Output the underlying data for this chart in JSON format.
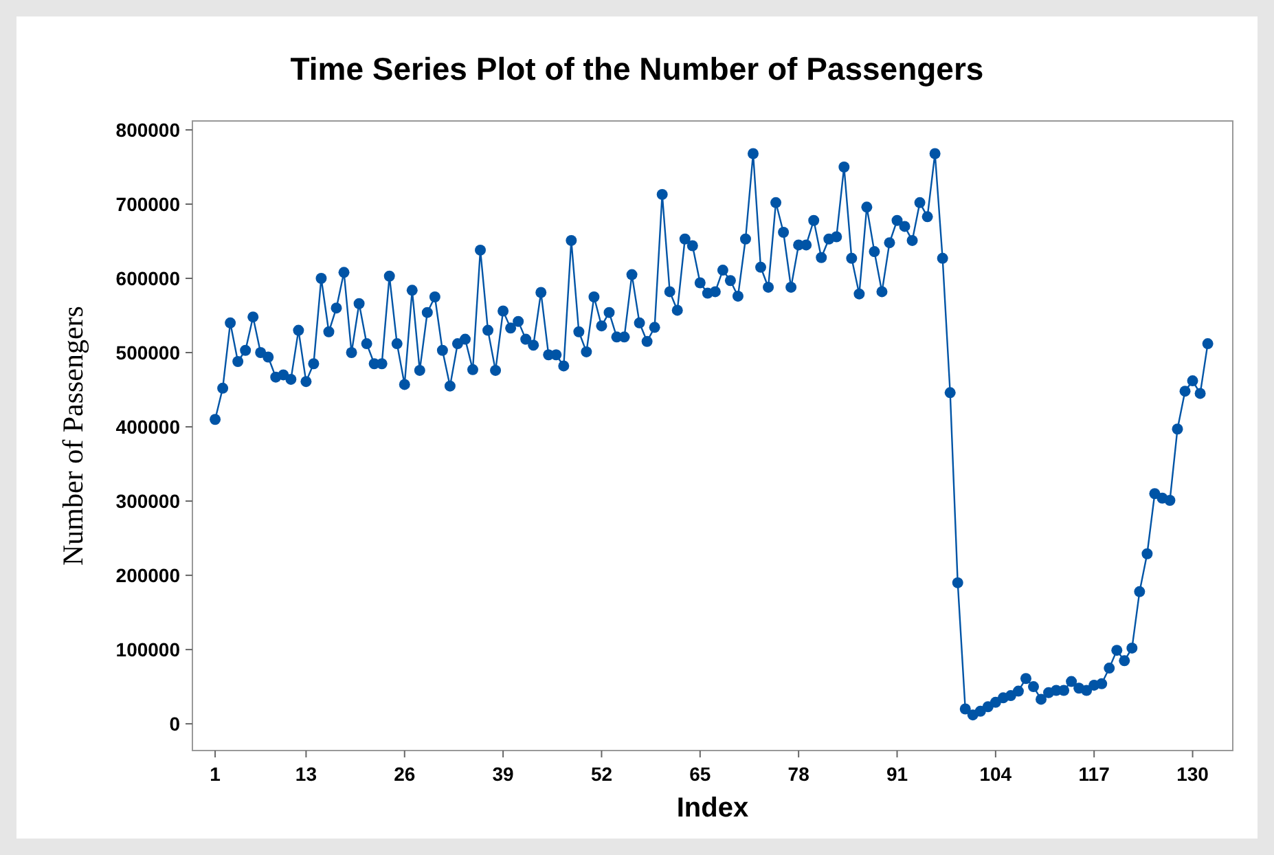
{
  "chart_data": {
    "type": "line",
    "title": "Time Series Plot of the Number of Passengers",
    "xlabel": "Index",
    "ylabel": "Number of Passengers",
    "x": [
      1,
      2,
      3,
      4,
      5,
      6,
      7,
      8,
      9,
      10,
      11,
      12,
      13,
      14,
      15,
      16,
      17,
      18,
      19,
      20,
      21,
      22,
      23,
      24,
      25,
      26,
      27,
      28,
      29,
      30,
      31,
      32,
      33,
      34,
      35,
      36,
      37,
      38,
      39,
      40,
      41,
      42,
      43,
      44,
      45,
      46,
      47,
      48,
      49,
      50,
      51,
      52,
      53,
      54,
      55,
      56,
      57,
      58,
      59,
      60,
      61,
      62,
      63,
      64,
      65,
      66,
      67,
      68,
      69,
      70,
      71,
      72,
      73,
      74,
      75,
      76,
      77,
      78,
      79,
      80,
      81,
      82,
      83,
      84,
      85,
      86,
      87,
      88,
      89,
      90,
      91,
      92,
      93,
      94,
      95,
      96,
      97,
      98,
      99,
      100,
      101,
      102,
      103,
      104,
      105,
      106,
      107,
      108,
      109,
      110,
      111,
      112,
      113,
      114,
      115,
      116,
      117,
      118,
      119,
      120,
      121,
      122,
      123,
      124,
      125,
      126,
      127,
      128,
      129,
      130,
      131,
      132
    ],
    "series": [
      {
        "color": "#0054a6",
        "values": [
          410000,
          452000,
          540000,
          488000,
          503000,
          548000,
          500000,
          494000,
          467000,
          470000,
          464000,
          530000,
          461000,
          485000,
          600000,
          528000,
          560000,
          608000,
          500000,
          566000,
          512000,
          485000,
          485000,
          603000,
          512000,
          457000,
          584000,
          476000,
          554000,
          575000,
          503000,
          455000,
          512000,
          518000,
          477000,
          638000,
          530000,
          476000,
          556000,
          533000,
          542000,
          518000,
          510000,
          581000,
          497000,
          497000,
          482000,
          651000,
          528000,
          501000,
          575000,
          536000,
          554000,
          521000,
          521000,
          605000,
          540000,
          515000,
          534000,
          713000,
          582000,
          557000,
          653000,
          644000,
          594000,
          580000,
          582000,
          611000,
          597000,
          576000,
          653000,
          768000,
          615000,
          588000,
          702000,
          662000,
          588000,
          645000,
          645000,
          678000,
          628000,
          653000,
          656000,
          750000,
          627000,
          579000,
          696000,
          636000,
          582000,
          648000,
          678000,
          670000,
          651000,
          702000,
          683000,
          768000,
          627000,
          446000,
          190000,
          20000,
          12000,
          17000,
          23000,
          29000,
          35000,
          38000,
          44000,
          61000,
          50000,
          33000,
          42000,
          45000,
          45000,
          57000,
          48000,
          45000,
          52000,
          54000,
          75000,
          99000,
          85000,
          102000,
          178000,
          229000,
          310000,
          304000,
          301000,
          397000,
          448000,
          462000,
          445000,
          512000
        ]
      }
    ],
    "xlim": [
      -2,
      135.3
    ],
    "ylim": [
      -36000,
      812000
    ],
    "xticks": [
      1,
      13,
      26,
      39,
      52,
      65,
      78,
      91,
      104,
      117,
      130
    ],
    "yticks": [
      0,
      100000,
      200000,
      300000,
      400000,
      500000,
      600000,
      700000,
      800000
    ],
    "marker": "circle",
    "line_style": "solid"
  }
}
